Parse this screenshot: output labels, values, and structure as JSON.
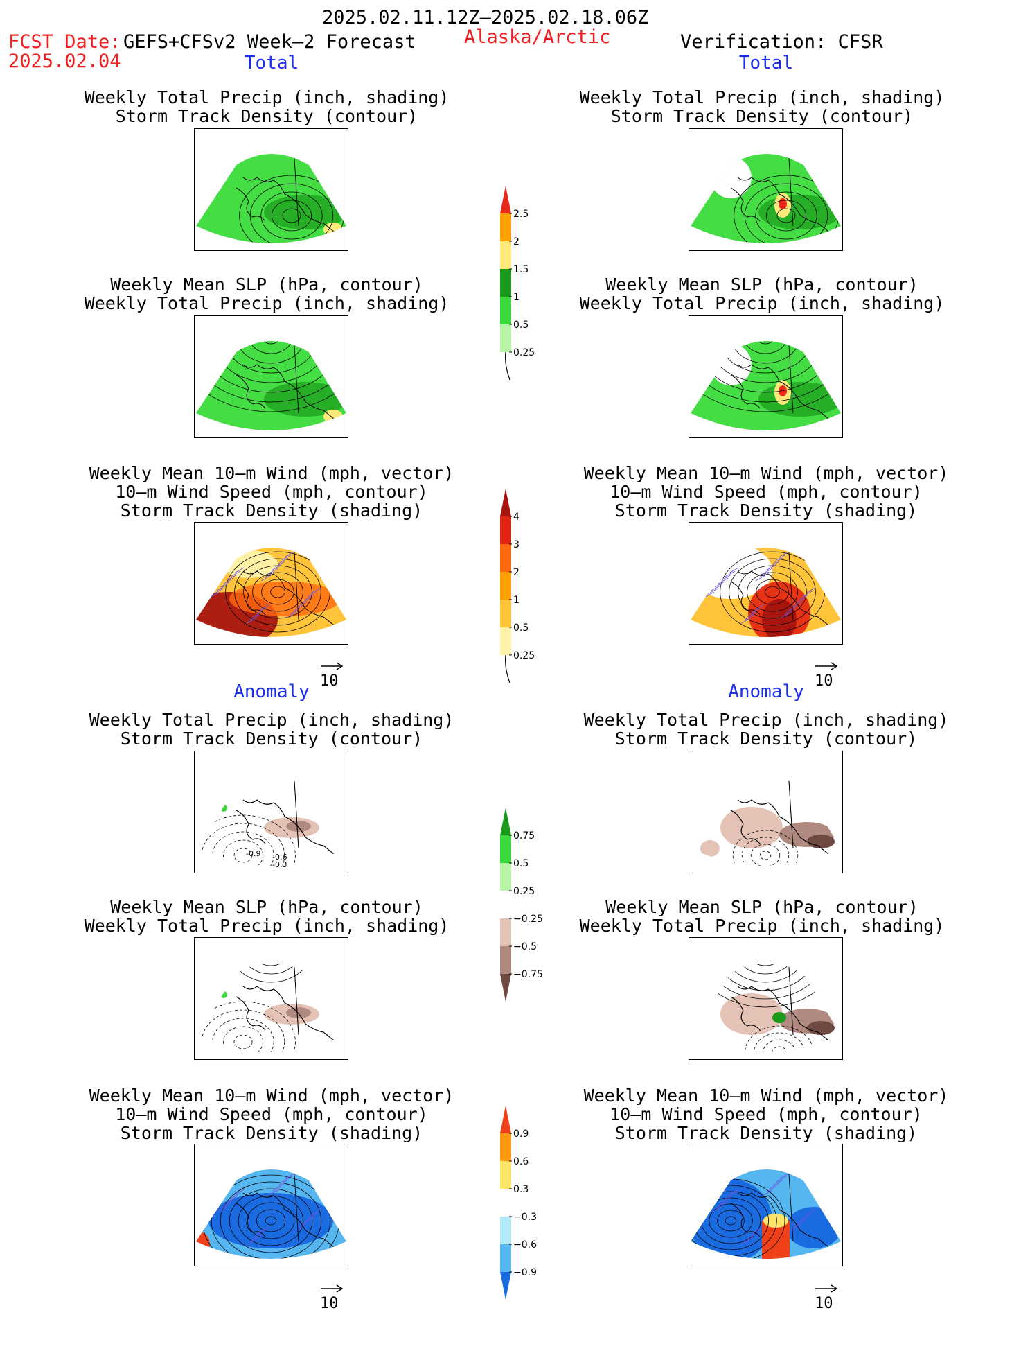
{
  "header": {
    "date_range": "2025.02.11.12Z–2025.02.18.06Z",
    "fcst_label": "FCST Date:",
    "model": "GEFS+CFSv2 Week–2 Forecast",
    "fcst_date": "2025.02.04",
    "region": "Alaska/Arctic",
    "verification": "Verification: CFSR"
  },
  "sections": {
    "total": "Total",
    "anomaly": "Anomaly"
  },
  "titles": {
    "precip_storm": [
      "Weekly Total Precip (inch, shading)",
      "Storm Track Density (contour)"
    ],
    "slp_precip": [
      "Weekly Mean SLP (hPa, contour)",
      "Weekly Total Precip (inch, shading)"
    ],
    "wind_storm": [
      "Weekly Mean 10–m Wind (mph, vector)",
      "10–m Wind Speed (mph, contour)",
      "Storm Track Density (shading)"
    ]
  },
  "vector_ref": "10",
  "contour_labels": {
    "a": "-0.9",
    "b": "-0.6",
    "c": "-0.3"
  },
  "colorbars": {
    "precip_total": {
      "labels": [
        "2.5",
        "2",
        "1.5",
        "1",
        "0.5",
        "0.25"
      ],
      "colors": [
        "#e8291b",
        "#ffa200",
        "#ffe97a",
        "#1a9a1a",
        "#3cd93c",
        "#b6f5a8"
      ]
    },
    "storm_total": {
      "labels": [
        "4",
        "3",
        "2",
        "1",
        "0.5",
        "0.25"
      ],
      "colors": [
        "#a8150f",
        "#e32411",
        "#ff6a10",
        "#ffa200",
        "#ffc43a",
        "#fff2a6"
      ]
    },
    "precip_anom": {
      "labels": [
        "0.75",
        "0.5",
        "0.25",
        "−0.25",
        "−0.5",
        "−0.75"
      ],
      "colors": [
        "#1a9a1a",
        "#3cd93c",
        "#b6f5a8",
        "#ffffff",
        "#e4c2b6",
        "#b08a80",
        "#6f4a42"
      ]
    },
    "storm_anom": {
      "labels": [
        "0.9",
        "0.6",
        "0.3",
        "−0.3",
        "−0.6",
        "−0.9"
      ],
      "colors": [
        "#f0401a",
        "#ff9a10",
        "#ffe46a",
        "#ffffff",
        "#b4eaf8",
        "#56b6f0",
        "#1a6ae0"
      ]
    }
  }
}
